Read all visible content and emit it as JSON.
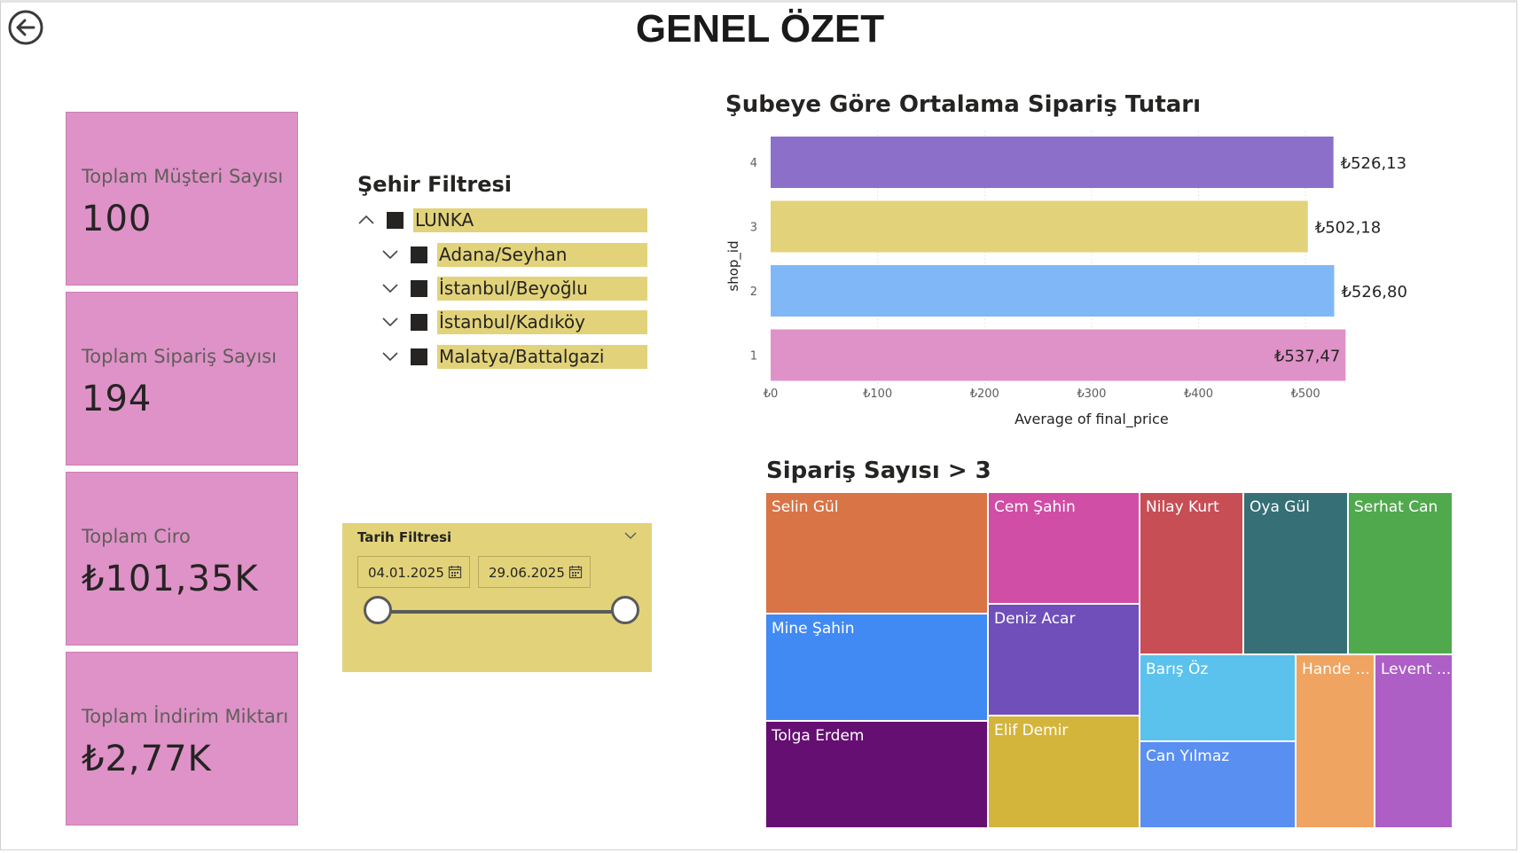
{
  "page": {
    "title": "GENEL ÖZET",
    "back_icon": "arrow-left-circle-icon"
  },
  "cards": [
    {
      "label": "Toplam Müşteri Sayısı",
      "value": "100"
    },
    {
      "label": "Toplam Sipariş Sayısı",
      "value": "194"
    },
    {
      "label": "Toplam Ciro",
      "value": "₺101,35K"
    },
    {
      "label": "Toplam İndirim Miktarı",
      "value": "₺2,77K"
    }
  ],
  "colors": {
    "card_bg": "#df92c7",
    "slicer_bg": "#e2d37a",
    "bar_colors": [
      "#8c6fc9",
      "#e2d37a",
      "#80b8f7",
      "#df92c7"
    ]
  },
  "city_filter": {
    "title": "Şehir Filtresi",
    "root": {
      "label": "LUNKA",
      "expanded": true
    },
    "items": [
      {
        "label": "Adana/Seyhan"
      },
      {
        "label": "İstanbul/Beyoğlu"
      },
      {
        "label": "İstanbul/Kadıköy"
      },
      {
        "label": "Malatya/Battalgazi"
      }
    ]
  },
  "date_filter": {
    "title": "Tarih Filtresi",
    "start": "04.01.2025",
    "end": "29.06.2025"
  },
  "bar_chart": {
    "title": "Şubeye Göre Ortalama Sipariş Tutarı"
  },
  "chart_data": {
    "type": "bar",
    "orientation": "horizontal",
    "title": "Şubeye Göre Ortalama Sipariş Tutarı",
    "xlabel": "Average of final_price",
    "ylabel": "shop_id",
    "categories": [
      "4",
      "3",
      "2",
      "1"
    ],
    "values": [
      526.13,
      502.18,
      526.8,
      537.47
    ],
    "value_labels": [
      "₺526,13",
      "₺502,18",
      "₺526,80",
      "₺537,47"
    ],
    "xlim": [
      0,
      540
    ],
    "x_ticks": [
      0,
      100,
      200,
      300,
      400,
      500
    ],
    "x_tick_labels": [
      "₺0",
      "₺100",
      "₺200",
      "₺300",
      "₺400",
      "₺500"
    ],
    "grid": true
  },
  "treemap": {
    "title": "Sipariş Sayısı > 3",
    "cells": [
      {
        "label": "Selin Gül",
        "color": "#d97446"
      },
      {
        "label": "Mine Şahin",
        "color": "#418af4"
      },
      {
        "label": "Tolga Erdem",
        "color": "#650f72"
      },
      {
        "label": "Cem Şahin",
        "color": "#d04ea6"
      },
      {
        "label": "Deniz Acar",
        "color": "#704fbb"
      },
      {
        "label": "Elif Demir",
        "color": "#d4b53c"
      },
      {
        "label": "Nilay Kurt",
        "color": "#c74e55"
      },
      {
        "label": "Oya Gül",
        "color": "#366f76"
      },
      {
        "label": "Serhat Can",
        "color": "#51a94e"
      },
      {
        "label": "Barış Öz",
        "color": "#5ac2ec"
      },
      {
        "label": "Can Yılmaz",
        "color": "#5a8ff2"
      },
      {
        "label": "Hande ...",
        "color": "#f0a461"
      },
      {
        "label": "Levent ...",
        "color": "#ad5fc6"
      }
    ]
  }
}
